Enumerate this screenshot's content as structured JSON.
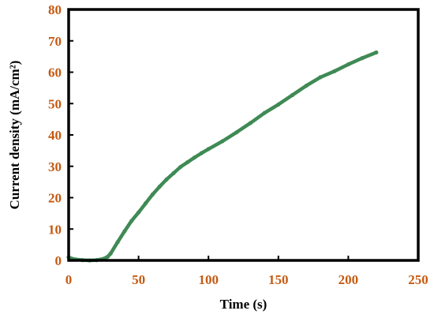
{
  "chart_data": {
    "type": "line",
    "title": "",
    "xlabel": "Time (s)",
    "ylabel": "Current density (mA/cm²)",
    "xlim": [
      0,
      250
    ],
    "ylim": [
      0,
      80
    ],
    "x_ticks": [
      0,
      50,
      100,
      150,
      200,
      250
    ],
    "y_ticks": [
      0,
      10,
      20,
      30,
      40,
      50,
      60,
      70,
      80
    ],
    "grid": false,
    "legend": "none",
    "series": [
      {
        "color": "#3f8a55",
        "x": [
          0,
          2,
          5,
          10,
          15,
          20,
          25,
          28,
          30,
          35,
          40,
          45,
          50,
          55,
          60,
          65,
          70,
          75,
          80,
          85,
          90,
          95,
          100,
          110,
          120,
          130,
          140,
          150,
          160,
          170,
          180,
          190,
          200,
          210,
          220
        ],
        "y": [
          1.0,
          0.6,
          0.3,
          0.1,
          0.0,
          0.1,
          0.5,
          1.2,
          2.2,
          5.8,
          9.3,
          12.6,
          15.3,
          18.2,
          21.0,
          23.5,
          25.8,
          27.8,
          29.8,
          31.3,
          32.8,
          34.2,
          35.5,
          38.0,
          40.8,
          43.8,
          47.0,
          49.7,
          52.7,
          55.7,
          58.4,
          60.3,
          62.5,
          64.5,
          66.3
        ]
      }
    ]
  }
}
